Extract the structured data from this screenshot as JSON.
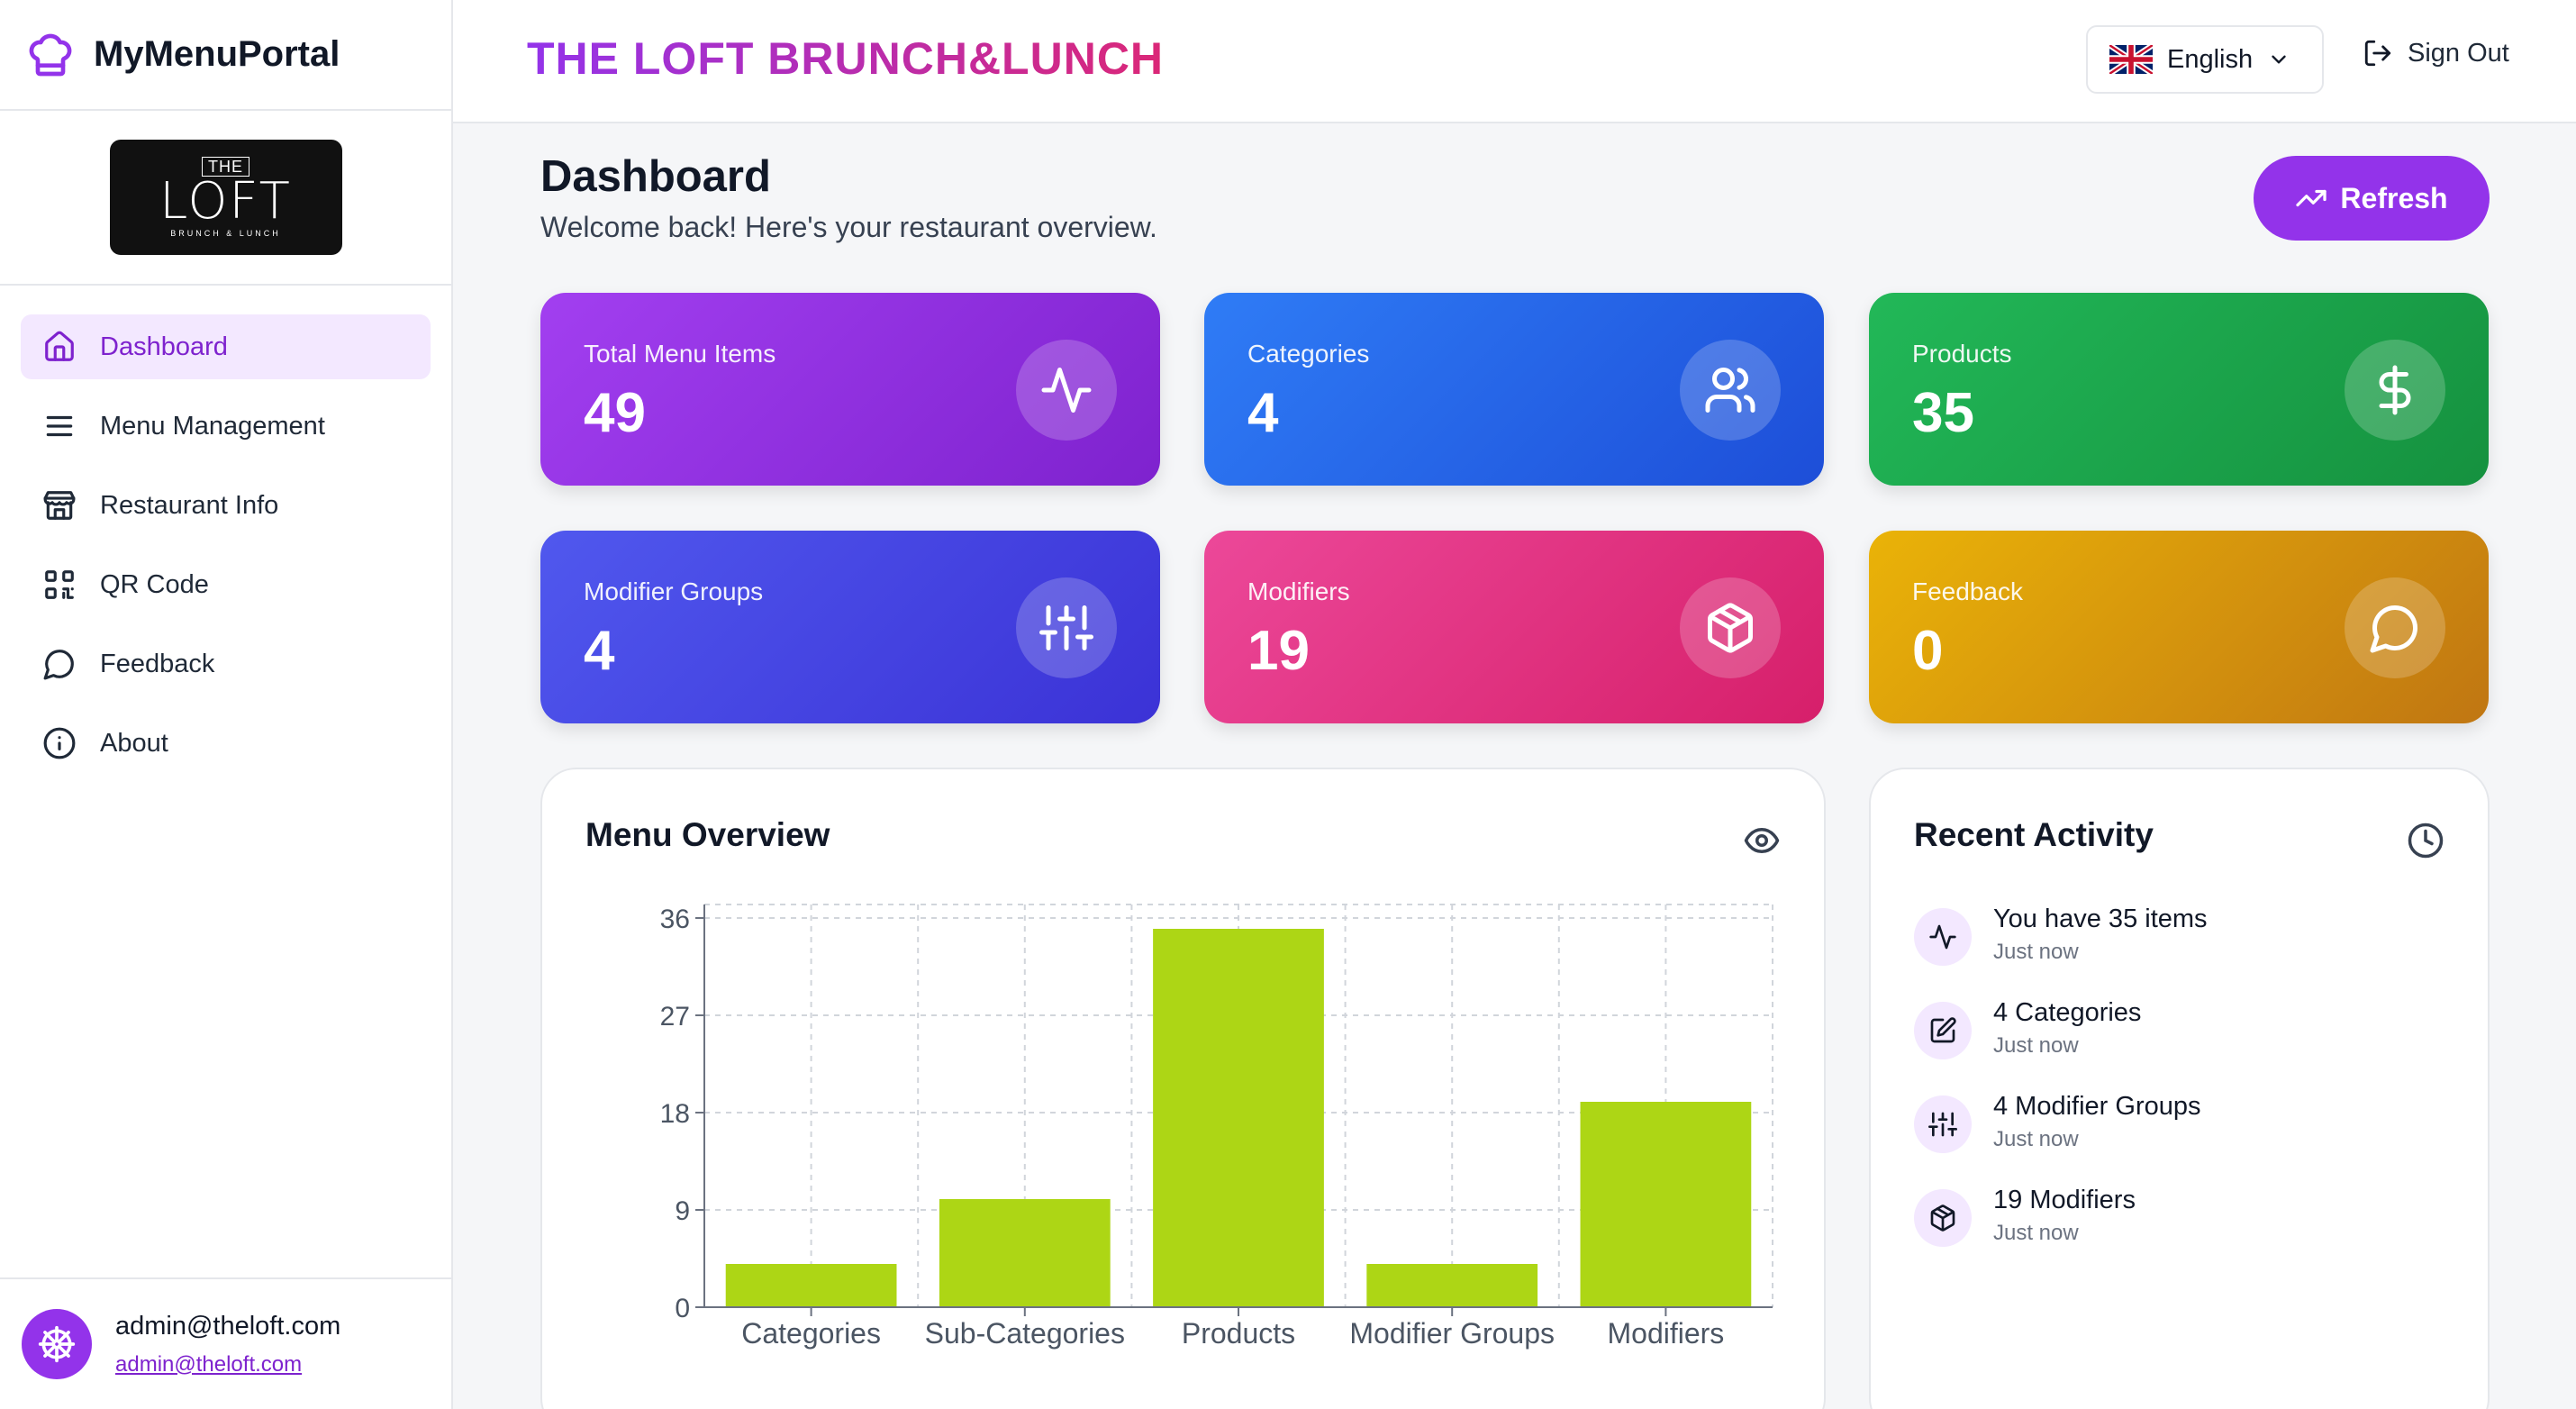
{
  "app": {
    "name": "MyMenuPortal"
  },
  "logo": {
    "top": "THE",
    "main": "LOFT",
    "sub": "BRUNCH & LUNCH"
  },
  "nav": [
    {
      "label": "Dashboard",
      "icon": "home-icon",
      "active": true
    },
    {
      "label": "Menu Management",
      "icon": "menu-lines-icon"
    },
    {
      "label": "Restaurant Info",
      "icon": "store-icon"
    },
    {
      "label": "QR Code",
      "icon": "qr-code-icon"
    },
    {
      "label": "Feedback",
      "icon": "message-circle-icon"
    },
    {
      "label": "About",
      "icon": "info-icon"
    }
  ],
  "user": {
    "name": "admin@theloft.com",
    "email": "admin@theloft.com"
  },
  "header": {
    "restaurant": "THE LOFT BRUNCH&LUNCH",
    "language": "English",
    "signout": "Sign Out"
  },
  "page": {
    "title": "Dashboard",
    "subtitle": "Welcome back! Here's your restaurant overview.",
    "refresh": "Refresh"
  },
  "stats": [
    {
      "label": "Total Menu Items",
      "value": "49",
      "icon": "activity-icon"
    },
    {
      "label": "Categories",
      "value": "4",
      "icon": "users-icon"
    },
    {
      "label": "Products",
      "value": "35",
      "icon": "dollar-icon"
    },
    {
      "label": "Modifier Groups",
      "value": "4",
      "icon": "sliders-icon"
    },
    {
      "label": "Modifiers",
      "value": "19",
      "icon": "box-icon"
    },
    {
      "label": "Feedback",
      "value": "0",
      "icon": "message-circle-icon"
    }
  ],
  "overview": {
    "title": "Menu Overview"
  },
  "activity": {
    "title": "Recent Activity",
    "items": [
      {
        "title": "You have 35 items",
        "time": "Just now",
        "icon": "activity-icon"
      },
      {
        "title": "4 Categories",
        "time": "Just now",
        "icon": "edit-icon"
      },
      {
        "title": "4 Modifier Groups",
        "time": "Just now",
        "icon": "sliders-icon"
      },
      {
        "title": "19 Modifiers",
        "time": "Just now",
        "icon": "box-icon"
      }
    ]
  },
  "colors": {
    "accent": "#9333ea",
    "bar": "#add615"
  },
  "chart_data": {
    "type": "bar",
    "title": "Menu Overview",
    "categories": [
      "Categories",
      "Sub-Categories",
      "Products",
      "Modifier Groups",
      "Modifiers"
    ],
    "values": [
      4,
      10,
      35,
      4,
      19
    ],
    "yticks": [
      "0",
      "9",
      "18",
      "27",
      "36"
    ],
    "ylim": [
      0,
      36
    ],
    "xlabel": "",
    "ylabel": "",
    "grid": true
  }
}
